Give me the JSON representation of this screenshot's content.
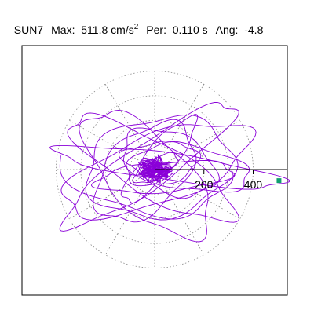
{
  "header": {
    "station": "SUN7",
    "max_label": "Max:",
    "max_value": "511.8",
    "max_unit": "cm/s",
    "max_unit_sup": "2",
    "per_label": "Per:",
    "per_value": "0.110 s",
    "ang_label": "Ang:",
    "ang_value": "-4.8"
  },
  "chart_data": {
    "type": "scatter",
    "description_free": true,
    "x_tick_labels": [
      "200",
      "400"
    ],
    "x_ticks": [
      200,
      400
    ],
    "rings": [
      100,
      200,
      300,
      400
    ],
    "radius_extent": 510,
    "grid": true,
    "colors": {
      "orbit": "#8a00d8",
      "marker": "#10a070",
      "axis": "#000000",
      "grid": "#888888"
    },
    "marker_point": {
      "x": 505,
      "y": -45
    },
    "orbit_loops": [
      {
        "a": 470,
        "b": 55,
        "rot": -8,
        "cx": 60,
        "cy": 10,
        "t0": 0,
        "t1": 1
      },
      {
        "a": 400,
        "b": 140,
        "rot": 20,
        "cx": 10,
        "cy": 0,
        "t0": 0.05,
        "t1": 1.05
      },
      {
        "a": 380,
        "b": 110,
        "rot": -30,
        "cx": -10,
        "cy": 5,
        "t0": 0.2,
        "t1": 1.2
      },
      {
        "a": 300,
        "b": 200,
        "rot": 10,
        "cx": 20,
        "cy": 10,
        "t0": 0.1,
        "t1": 1.1
      },
      {
        "a": 420,
        "b": 90,
        "rot": 35,
        "cx": -20,
        "cy": 20,
        "t0": 0.3,
        "t1": 1.3
      },
      {
        "a": 260,
        "b": 90,
        "rot": -10,
        "cx": 130,
        "cy": 10,
        "t0": 0,
        "t1": 1
      },
      {
        "a": 240,
        "b": 150,
        "rot": 45,
        "cx": -40,
        "cy": -10,
        "t0": 0.15,
        "t1": 1.15
      },
      {
        "a": 200,
        "b": 120,
        "rot": -25,
        "cx": 60,
        "cy": 30,
        "t0": 0.4,
        "t1": 1.4
      },
      {
        "a": 150,
        "b": 80,
        "rot": 15,
        "cx": 30,
        "cy": 20,
        "t0": 0.2,
        "t1": 1.2
      },
      {
        "a": 330,
        "b": 150,
        "rot": -45,
        "cx": -30,
        "cy": -20,
        "t0": 0.5,
        "t1": 1.5
      },
      {
        "a": 280,
        "b": 60,
        "rot": 5,
        "cx": 40,
        "cy": -30,
        "t0": 0.1,
        "t1": 1.1
      },
      {
        "a": 100,
        "b": 40,
        "rot": 30,
        "cx": 5,
        "cy": 5,
        "t0": 0,
        "t1": 1
      },
      {
        "a": 60,
        "b": 30,
        "rot": -40,
        "cx": 0,
        "cy": 0,
        "t0": 0.3,
        "t1": 1.3
      },
      {
        "a": 360,
        "b": 200,
        "rot": -15,
        "cx": -60,
        "cy": 30,
        "t0": 0.55,
        "t1": 1.05
      },
      {
        "a": 220,
        "b": 60,
        "rot": 50,
        "cx": 20,
        "cy": 40,
        "t0": 0.6,
        "t1": 1.6
      }
    ]
  }
}
